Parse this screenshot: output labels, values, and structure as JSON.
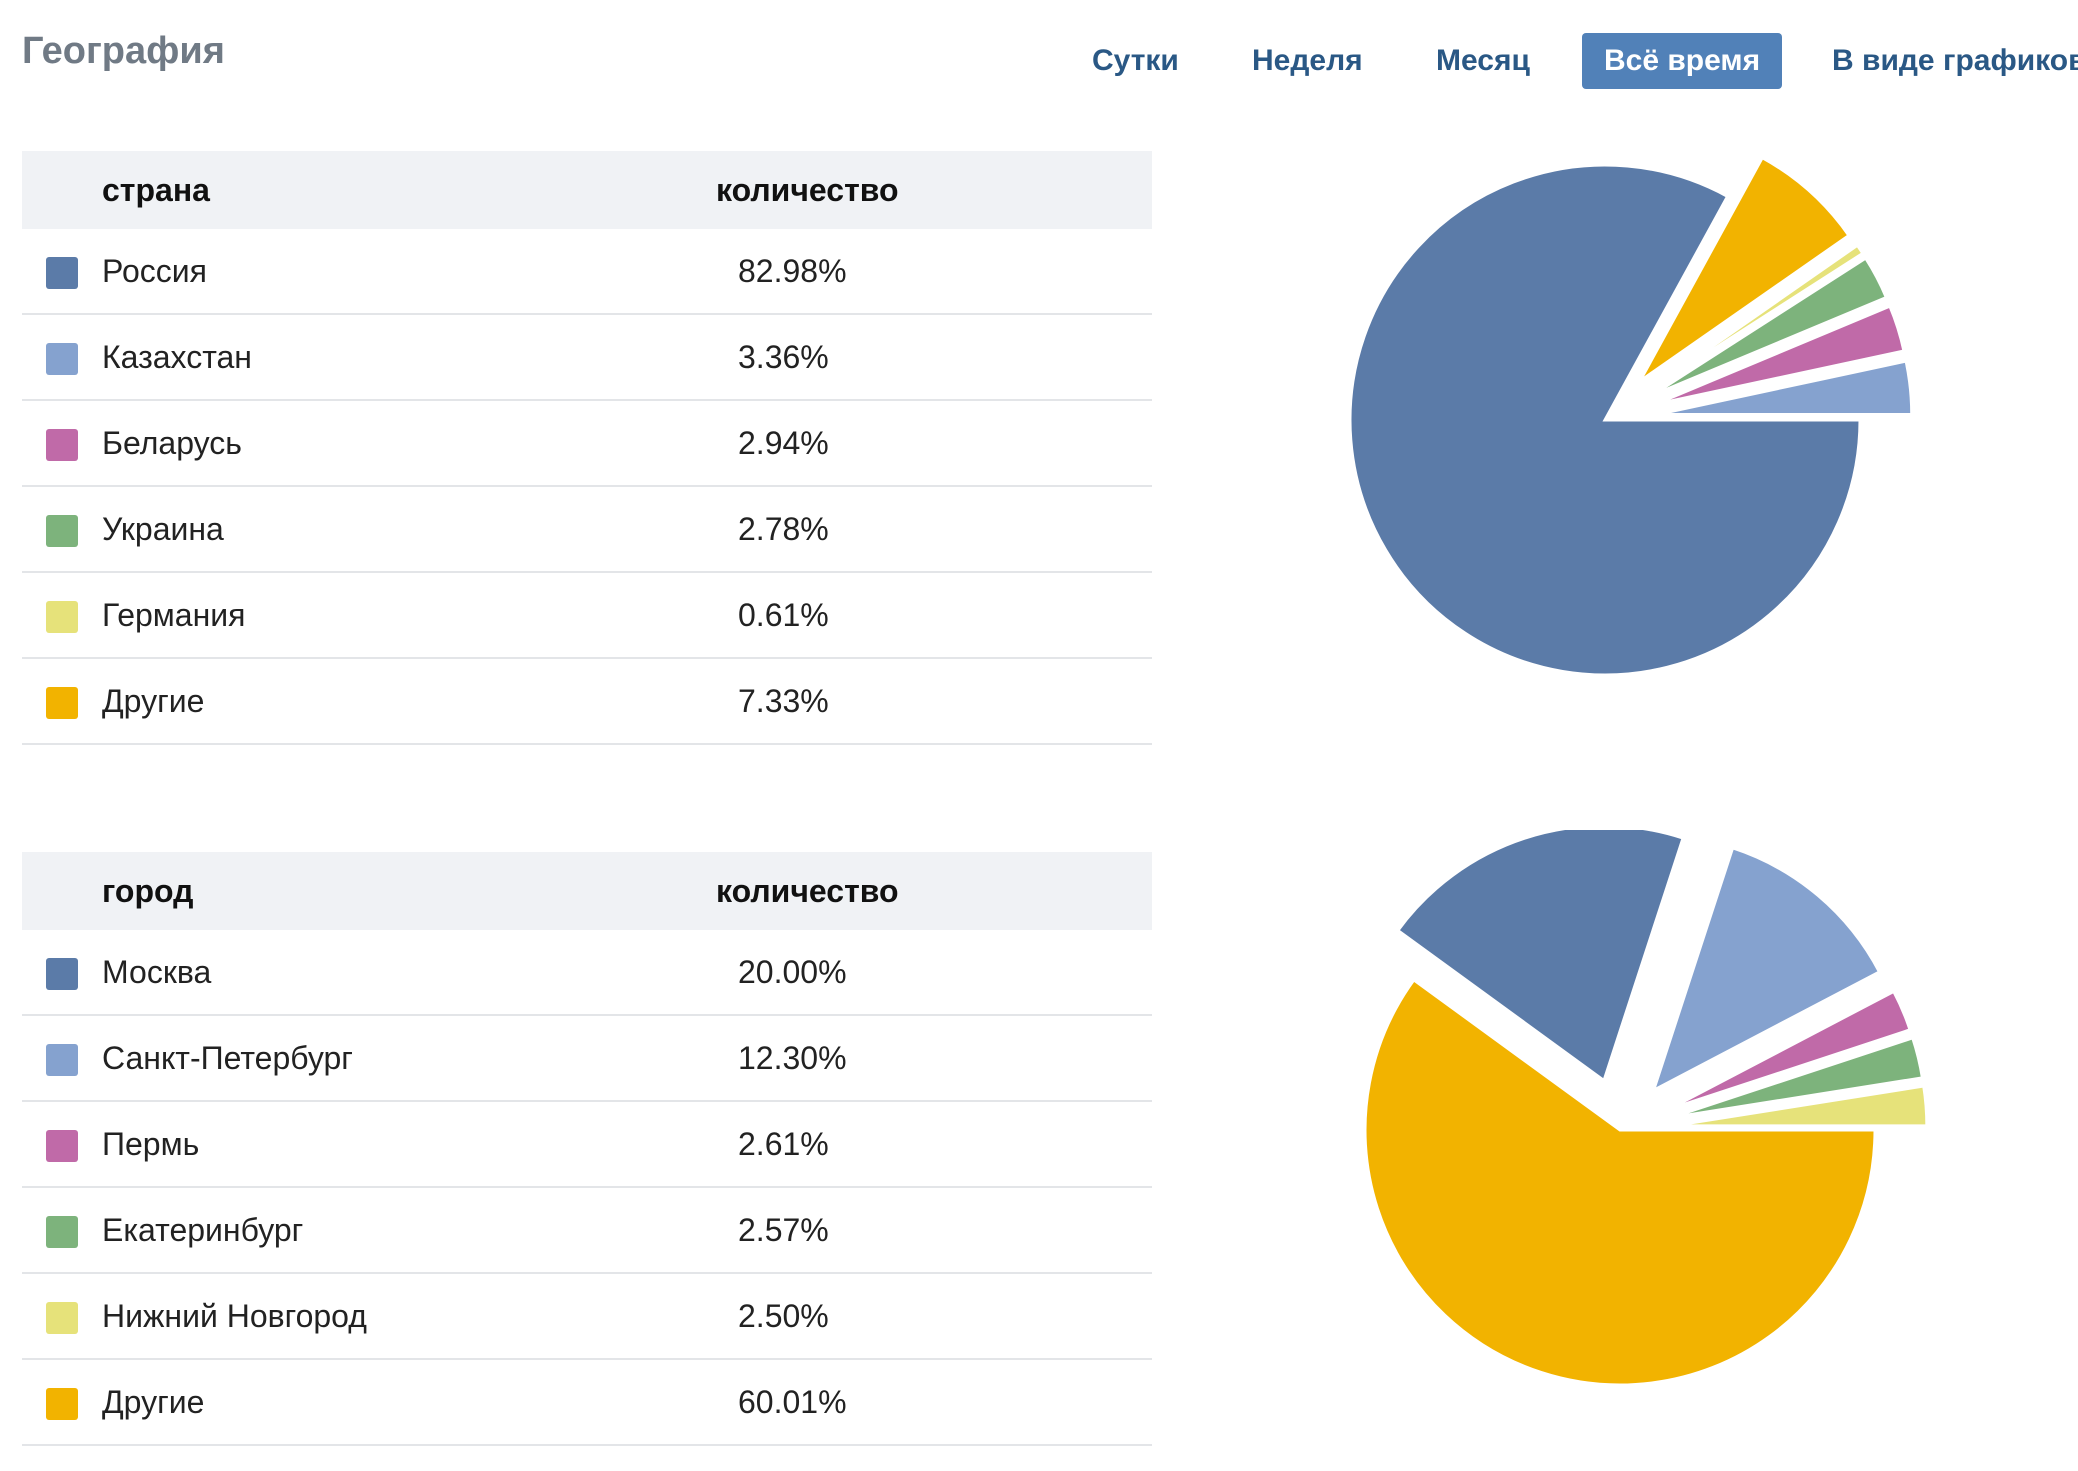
{
  "header": {
    "title": "География"
  },
  "tabs": [
    {
      "label": "Сутки",
      "active": false
    },
    {
      "label": "Неделя",
      "active": false
    },
    {
      "label": "Месяц",
      "active": false
    },
    {
      "label": "Всё время",
      "active": true
    },
    {
      "label": "В виде графиков",
      "active": false
    }
  ],
  "countries": {
    "col_name": "страна",
    "col_value": "количество",
    "rows": [
      {
        "name": "Россия",
        "value": "82.98%",
        "color": "#5b7ba8"
      },
      {
        "name": "Казахстан",
        "value": "3.36%",
        "color": "#85a2cf"
      },
      {
        "name": "Беларусь",
        "value": "2.94%",
        "color": "#c06aa8"
      },
      {
        "name": "Украина",
        "value": "2.78%",
        "color": "#7db37c"
      },
      {
        "name": "Германия",
        "value": "0.61%",
        "color": "#e6e27a"
      },
      {
        "name": "Другие",
        "value": "7.33%",
        "color": "#f2b300"
      }
    ]
  },
  "cities": {
    "col_name": "город",
    "col_value": "количество",
    "rows": [
      {
        "name": "Москва",
        "value": "20.00%",
        "color": "#5b7ba8"
      },
      {
        "name": "Санкт-Петербург",
        "value": "12.30%",
        "color": "#85a2cf"
      },
      {
        "name": "Пермь",
        "value": "2.61%",
        "color": "#c06aa8"
      },
      {
        "name": "Екатеринбург",
        "value": "2.57%",
        "color": "#7db37c"
      },
      {
        "name": "Нижний Новгород",
        "value": "2.50%",
        "color": "#e6e27a"
      },
      {
        "name": "Другие",
        "value": "60.01%",
        "color": "#f2b300"
      }
    ]
  },
  "chart_data": [
    {
      "type": "pie",
      "title": "",
      "categories": [
        "Россия",
        "Казахстан",
        "Беларусь",
        "Украина",
        "Германия",
        "Другие"
      ],
      "values": [
        82.98,
        3.36,
        2.94,
        2.78,
        0.61,
        7.33
      ],
      "colors": [
        "#5b7ba8",
        "#85a2cf",
        "#c06aa8",
        "#7db37c",
        "#e6e27a",
        "#f2b300"
      ]
    },
    {
      "type": "pie",
      "title": "",
      "categories": [
        "Москва",
        "Санкт-Петербург",
        "Пермь",
        "Екатеринбург",
        "Нижний Новгород",
        "Другие"
      ],
      "values": [
        20.0,
        12.3,
        2.61,
        2.57,
        2.5,
        60.01
      ],
      "colors": [
        "#5b7ba8",
        "#85a2cf",
        "#c06aa8",
        "#7db37c",
        "#e6e27a",
        "#f2b300"
      ]
    }
  ]
}
